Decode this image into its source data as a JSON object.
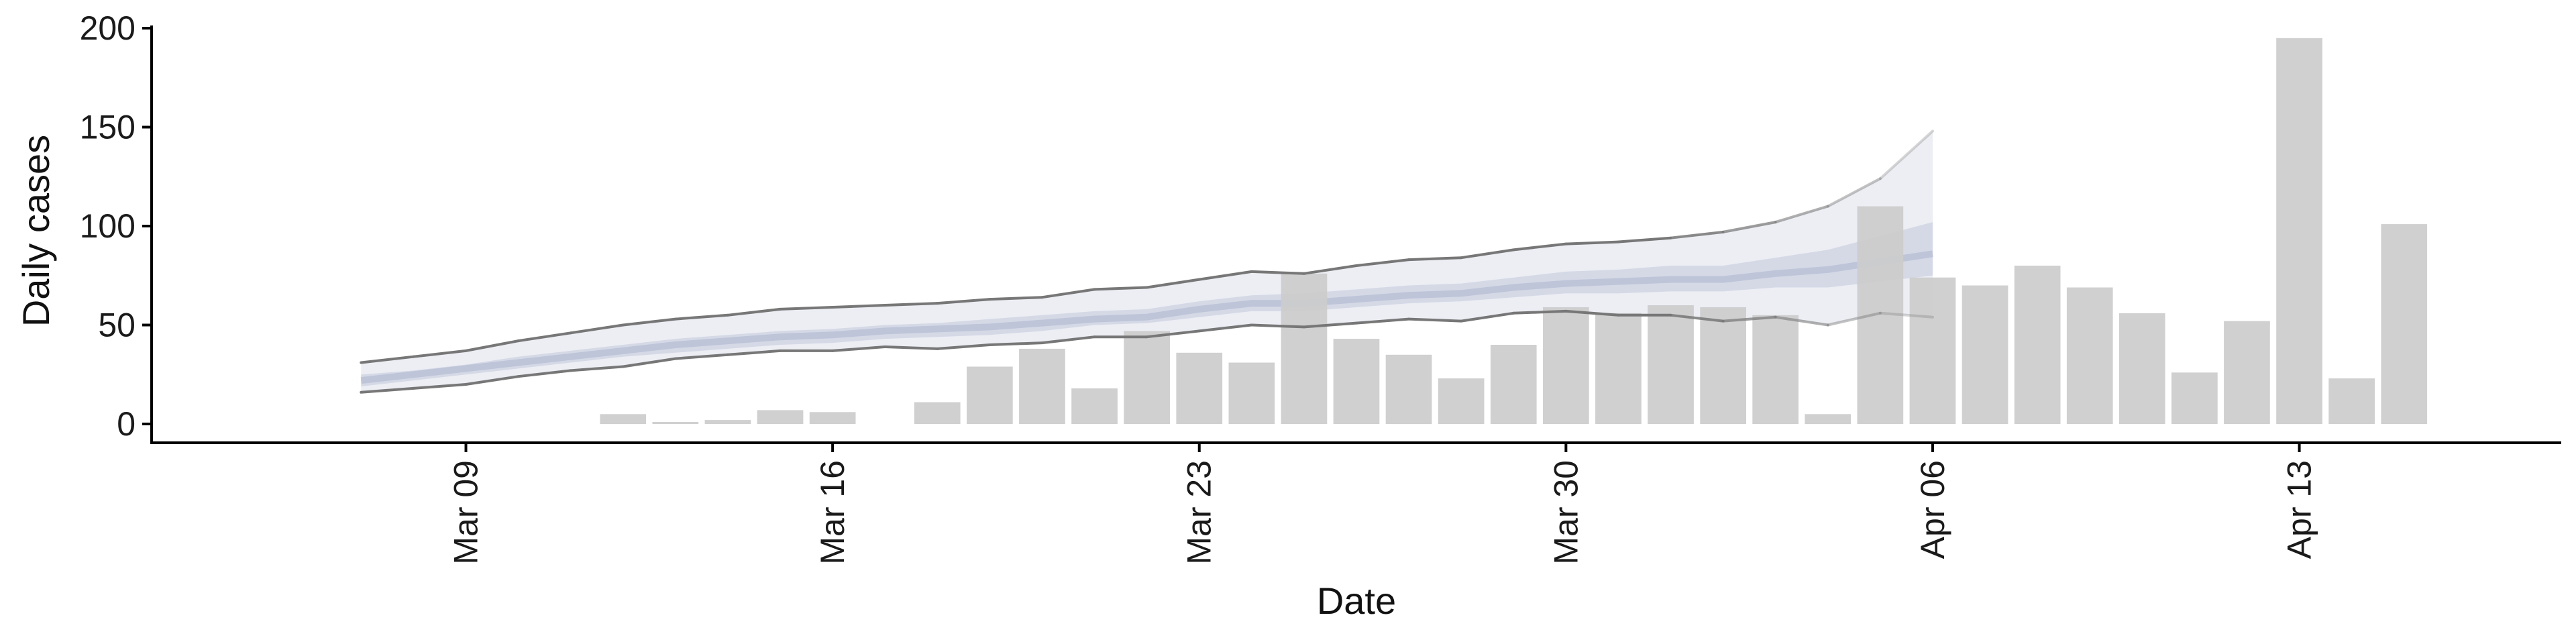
{
  "chart_data": {
    "type": "bar",
    "xlabel": "Date",
    "ylabel": "Daily cases",
    "ylim": [
      0,
      200
    ],
    "x_range": [
      "2020-03-03",
      "2020-04-18"
    ],
    "y_ticks": [
      0,
      50,
      100,
      150,
      200
    ],
    "x_ticks": [
      {
        "date": "2020-03-09",
        "label": "Mar 09"
      },
      {
        "date": "2020-03-16",
        "label": "Mar 16"
      },
      {
        "date": "2020-03-23",
        "label": "Mar 23"
      },
      {
        "date": "2020-03-30",
        "label": "Mar 30"
      },
      {
        "date": "2020-04-06",
        "label": "Apr 06"
      },
      {
        "date": "2020-04-13",
        "label": "Apr 13"
      }
    ],
    "grid": false,
    "colors": {
      "bars": "#cccccc",
      "band_outer": "#e6e8f0",
      "band_inner": "#c9cedf",
      "median": "#b8bfd6",
      "bound_lines": "#777777"
    },
    "observed": {
      "dates": [
        "2020-03-12",
        "2020-03-13",
        "2020-03-14",
        "2020-03-15",
        "2020-03-16",
        "2020-03-18",
        "2020-03-19",
        "2020-03-20",
        "2020-03-21",
        "2020-03-22",
        "2020-03-23",
        "2020-03-24",
        "2020-03-25",
        "2020-03-26",
        "2020-03-27",
        "2020-03-28",
        "2020-03-29",
        "2020-03-30",
        "2020-03-31",
        "2020-04-01",
        "2020-04-02",
        "2020-04-03",
        "2020-04-04",
        "2020-04-05",
        "2020-04-06",
        "2020-04-07",
        "2020-04-08",
        "2020-04-09",
        "2020-04-10",
        "2020-04-11",
        "2020-04-12",
        "2020-04-13",
        "2020-04-14",
        "2020-04-15"
      ],
      "values": [
        5,
        1,
        2,
        7,
        6,
        11,
        29,
        38,
        18,
        47,
        36,
        31,
        76,
        43,
        35,
        23,
        40,
        59,
        56,
        60,
        59,
        55,
        5,
        110,
        74,
        70,
        80,
        69,
        56,
        26,
        52,
        195,
        23,
        101
      ]
    },
    "estimate": {
      "dates": [
        "2020-03-07",
        "2020-03-08",
        "2020-03-09",
        "2020-03-10",
        "2020-03-11",
        "2020-03-12",
        "2020-03-13",
        "2020-03-14",
        "2020-03-15",
        "2020-03-16",
        "2020-03-17",
        "2020-03-18",
        "2020-03-19",
        "2020-03-20",
        "2020-03-21",
        "2020-03-22",
        "2020-03-23",
        "2020-03-24",
        "2020-03-25",
        "2020-03-26",
        "2020-03-27",
        "2020-03-28",
        "2020-03-29",
        "2020-03-30",
        "2020-03-31",
        "2020-04-01",
        "2020-04-02",
        "2020-04-03",
        "2020-04-04",
        "2020-04-05",
        "2020-04-06"
      ],
      "lower90": [
        16,
        18,
        20,
        24,
        27,
        29,
        33,
        35,
        37,
        37,
        39,
        38,
        40,
        41,
        44,
        44,
        47,
        50,
        49,
        51,
        53,
        52,
        56,
        57,
        55,
        55,
        52,
        54,
        50,
        56,
        54
      ],
      "upper90": [
        31,
        34,
        37,
        42,
        46,
        50,
        53,
        55,
        58,
        59,
        60,
        61,
        63,
        64,
        68,
        69,
        73,
        77,
        76,
        80,
        83,
        84,
        88,
        91,
        92,
        94,
        97,
        102,
        110,
        124,
        148
      ],
      "lower50": [
        19,
        22,
        25,
        28,
        31,
        34,
        36,
        38,
        40,
        41,
        43,
        44,
        45,
        47,
        50,
        51,
        54,
        57,
        57,
        59,
        61,
        62,
        64,
        66,
        66,
        67,
        67,
        69,
        69,
        72,
        75
      ],
      "upper50": [
        25,
        27,
        30,
        34,
        37,
        40,
        43,
        45,
        47,
        48,
        50,
        51,
        53,
        55,
        57,
        58,
        62,
        65,
        66,
        68,
        70,
        71,
        74,
        77,
        78,
        80,
        80,
        84,
        88,
        95,
        102
      ],
      "median": [
        22,
        25,
        28,
        31,
        34,
        37,
        40,
        42,
        44,
        45,
        47,
        48,
        49,
        51,
        53,
        54,
        58,
        61,
        61,
        63,
        65,
        66,
        69,
        71,
        72,
        73,
        73,
        76,
        78,
        82,
        86
      ]
    }
  }
}
